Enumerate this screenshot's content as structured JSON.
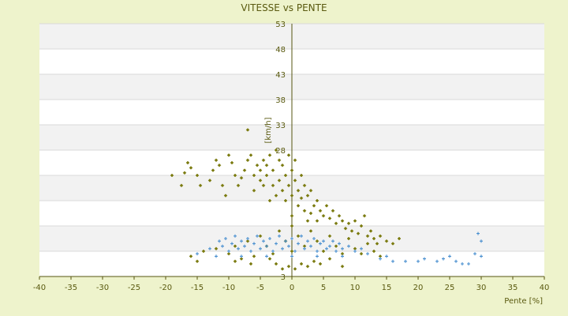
{
  "colors": {
    "page_background": "#eef3cc",
    "plot_background": "#ffffff",
    "band_alternate": "#f2f2f2",
    "gridline": "#d9d9d9",
    "axis": "#555510",
    "text": "#5a5a10",
    "series_olive": "#7b7b10",
    "series_blue": "#4a90d0"
  },
  "chart_data": {
    "type": "scatter",
    "title": "VITESSE vs PENTE",
    "xlabel": "Pente [%]",
    "ylabel": "[km/h]",
    "xlim": [
      -40,
      40
    ],
    "ylim": [
      3,
      53
    ],
    "x_ticks": [
      -40,
      -35,
      -30,
      -25,
      -20,
      -15,
      -10,
      -5,
      0,
      5,
      10,
      15,
      20,
      25,
      30,
      35,
      40
    ],
    "y_ticks": [
      3,
      8,
      13,
      18,
      23,
      28,
      33,
      38,
      43,
      48,
      53
    ],
    "y_tick_labels_shown": [
      "53",
      "48",
      "43",
      "38",
      "33",
      "28",
      "3"
    ],
    "grid": true,
    "alternating_bands": true,
    "series": [
      {
        "color": "#7b7b10",
        "marker": "diamond",
        "points": [
          [
            -19,
            23
          ],
          [
            -17.5,
            21
          ],
          [
            -17,
            23.5
          ],
          [
            -16.5,
            25.5
          ],
          [
            -16,
            24.5
          ],
          [
            -15,
            23
          ],
          [
            -14.5,
            21
          ],
          [
            -13,
            22
          ],
          [
            -12.5,
            24
          ],
          [
            -12,
            26
          ],
          [
            -11.5,
            25
          ],
          [
            -11,
            21
          ],
          [
            -10.5,
            19
          ],
          [
            -10,
            27
          ],
          [
            -9.5,
            25.5
          ],
          [
            -9,
            23
          ],
          [
            -8.5,
            21
          ],
          [
            -8,
            22.5
          ],
          [
            -7.5,
            24
          ],
          [
            -7,
            32
          ],
          [
            -7,
            26
          ],
          [
            -6.5,
            27
          ],
          [
            -6,
            23
          ],
          [
            -6,
            20
          ],
          [
            -5.5,
            25
          ],
          [
            -5,
            22
          ],
          [
            -5,
            24
          ],
          [
            -4.5,
            26
          ],
          [
            -4.5,
            21
          ],
          [
            -4,
            23
          ],
          [
            -4,
            25
          ],
          [
            -3.5,
            18
          ],
          [
            -3.5,
            27
          ],
          [
            -3,
            21
          ],
          [
            -3,
            24
          ],
          [
            -2.5,
            28
          ],
          [
            -2.5,
            19
          ],
          [
            -2,
            26
          ],
          [
            -2,
            22
          ],
          [
            -1.5,
            20
          ],
          [
            -1.5,
            25
          ],
          [
            -1,
            23
          ],
          [
            -1,
            18
          ],
          [
            -0.5,
            21
          ],
          [
            -0.5,
            27
          ],
          [
            0,
            24
          ],
          [
            0,
            19
          ],
          [
            0,
            15
          ],
          [
            0.5,
            22
          ],
          [
            0.5,
            26
          ],
          [
            1,
            20
          ],
          [
            1,
            17
          ],
          [
            1.5,
            23
          ],
          [
            1.5,
            18.5
          ],
          [
            2,
            21
          ],
          [
            2,
            16
          ],
          [
            2.5,
            19
          ],
          [
            2.5,
            14
          ],
          [
            3,
            20
          ],
          [
            3,
            15.5
          ],
          [
            3.5,
            17
          ],
          [
            4,
            18
          ],
          [
            4,
            14
          ],
          [
            4.5,
            16
          ],
          [
            5,
            15
          ],
          [
            5.5,
            17
          ],
          [
            6,
            14.5
          ],
          [
            6.5,
            16
          ],
          [
            7,
            13.5
          ],
          [
            7.5,
            15
          ],
          [
            8,
            14
          ],
          [
            8.5,
            12.5
          ],
          [
            9,
            13.5
          ],
          [
            9.5,
            12
          ],
          [
            10,
            14
          ],
          [
            10.5,
            11.5
          ],
          [
            11,
            13
          ],
          [
            11.5,
            15
          ],
          [
            12,
            11
          ],
          [
            12.5,
            12
          ],
          [
            13,
            10.5
          ],
          [
            13.5,
            9.5
          ],
          [
            14,
            11
          ],
          [
            15,
            10
          ],
          [
            16,
            9.5
          ],
          [
            17,
            10.5
          ],
          [
            -16,
            7
          ],
          [
            -15,
            6
          ],
          [
            -14,
            8
          ],
          [
            -12,
            8.5
          ],
          [
            -10,
            7.5
          ],
          [
            -9,
            9
          ],
          [
            -8,
            6.5
          ],
          [
            -7,
            10
          ],
          [
            -6,
            7
          ],
          [
            -5,
            11
          ],
          [
            -4,
            9
          ],
          [
            -3,
            7.5
          ],
          [
            -2,
            12
          ],
          [
            -1,
            10
          ],
          [
            0,
            8
          ],
          [
            0,
            13
          ],
          [
            1,
            11
          ],
          [
            2,
            9
          ],
          [
            3,
            12
          ],
          [
            4,
            10
          ],
          [
            5,
            8
          ],
          [
            6,
            11
          ],
          [
            7,
            9
          ],
          [
            8,
            7.5
          ],
          [
            9,
            10.5
          ],
          [
            10,
            8.5
          ],
          [
            11,
            7.5
          ],
          [
            12,
            9.5
          ],
          [
            13,
            8
          ],
          [
            14,
            7
          ],
          [
            -2.5,
            5.5
          ],
          [
            -1.5,
            4.5
          ],
          [
            -0.5,
            5
          ],
          [
            0.5,
            4.5
          ],
          [
            1.5,
            5.5
          ],
          [
            2.5,
            5
          ],
          [
            3.5,
            6
          ],
          [
            -3.5,
            6.5
          ],
          [
            4.5,
            5.5
          ],
          [
            6,
            6.5
          ],
          [
            -6.5,
            5.5
          ],
          [
            8,
            5
          ],
          [
            -9,
            6
          ]
        ]
      },
      {
        "color": "#4a90d0",
        "marker": "plus",
        "points": [
          [
            -11.5,
            10
          ],
          [
            -11,
            9
          ],
          [
            -10.5,
            10.5
          ],
          [
            -10,
            8
          ],
          [
            -9.5,
            9.5
          ],
          [
            -9,
            11
          ],
          [
            -8.5,
            8.5
          ],
          [
            -8,
            10
          ],
          [
            -7.5,
            9
          ],
          [
            -7,
            10.5
          ],
          [
            -6.5,
            8
          ],
          [
            -6,
            9.5
          ],
          [
            -5.5,
            11
          ],
          [
            -5,
            8.5
          ],
          [
            -4.5,
            10
          ],
          [
            -4,
            9
          ],
          [
            -3.5,
            10.5
          ],
          [
            -3,
            8
          ],
          [
            -2.5,
            9.5
          ],
          [
            -2,
            11
          ],
          [
            -1.5,
            8.5
          ],
          [
            -1,
            10
          ],
          [
            -0.5,
            9
          ],
          [
            0,
            10.5
          ],
          [
            0.5,
            8
          ],
          [
            1,
            9.5
          ],
          [
            1.5,
            11
          ],
          [
            2,
            8.5
          ],
          [
            2.5,
            10
          ],
          [
            3,
            9
          ],
          [
            3.5,
            10.5
          ],
          [
            4,
            8
          ],
          [
            4.5,
            9.5
          ],
          [
            5,
            10
          ],
          [
            5.5,
            8.5
          ],
          [
            6,
            9
          ],
          [
            6.5,
            10
          ],
          [
            7,
            8
          ],
          [
            7.5,
            9.5
          ],
          [
            8,
            8.5
          ],
          [
            9,
            9
          ],
          [
            10,
            8
          ],
          [
            11,
            8.5
          ],
          [
            12,
            7.5
          ],
          [
            -12,
            7
          ],
          [
            -13,
            8.5
          ],
          [
            -15,
            7.5
          ],
          [
            -8,
            7
          ],
          [
            -4,
            7
          ],
          [
            0,
            7
          ],
          [
            4,
            7
          ],
          [
            8,
            7
          ],
          [
            14,
            6.5
          ],
          [
            15,
            7
          ],
          [
            16,
            6
          ],
          [
            18,
            6
          ],
          [
            20,
            6
          ],
          [
            21,
            6.5
          ],
          [
            23,
            6
          ],
          [
            24,
            6.5
          ],
          [
            25,
            7
          ],
          [
            26,
            6
          ],
          [
            27,
            5.5
          ],
          [
            28,
            5.5
          ],
          [
            29,
            7.5
          ],
          [
            29.5,
            11.5
          ],
          [
            30,
            10
          ],
          [
            30,
            7
          ]
        ]
      }
    ]
  }
}
